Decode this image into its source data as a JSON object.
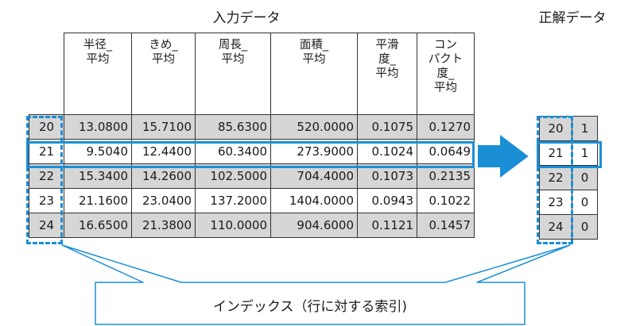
{
  "input_title": "入力データ",
  "answer_title": "正解データ",
  "headers": [
    [
      "半径_",
      "平均"
    ],
    [
      "きめ_",
      "平均"
    ],
    [
      "周長_",
      "平均"
    ],
    [
      "面積_",
      "平均"
    ],
    [
      "平滑",
      "度_",
      "平均"
    ],
    [
      "コン",
      "パクト",
      "度_",
      "平均"
    ]
  ],
  "rows": [
    {
      "index": "20",
      "values": [
        "13.0800",
        "15.7100",
        "85.6300",
        "520.0000",
        "0.1075",
        "0.1270"
      ],
      "label": "1"
    },
    {
      "index": "21",
      "values": [
        "9.5040",
        "12.4400",
        "60.3400",
        "273.9000",
        "0.1024",
        "0.0649"
      ],
      "label": "1"
    },
    {
      "index": "22",
      "values": [
        "15.3400",
        "14.2600",
        "102.5000",
        "704.4000",
        "0.1073",
        "0.2135"
      ],
      "label": "0"
    },
    {
      "index": "23",
      "values": [
        "21.1600",
        "23.0400",
        "137.2000",
        "1404.0000",
        "0.0943",
        "0.1022"
      ],
      "label": "0"
    },
    {
      "index": "24",
      "values": [
        "16.6500",
        "21.3800",
        "110.0000",
        "904.6000",
        "0.1121",
        "0.1457"
      ],
      "label": "0"
    }
  ],
  "callout": "インデックス（行に対する索引)",
  "colors": {
    "accent": "#1a8fd6",
    "row_shade": "#d6d6d6",
    "callout_border": "#1a8fd6"
  }
}
